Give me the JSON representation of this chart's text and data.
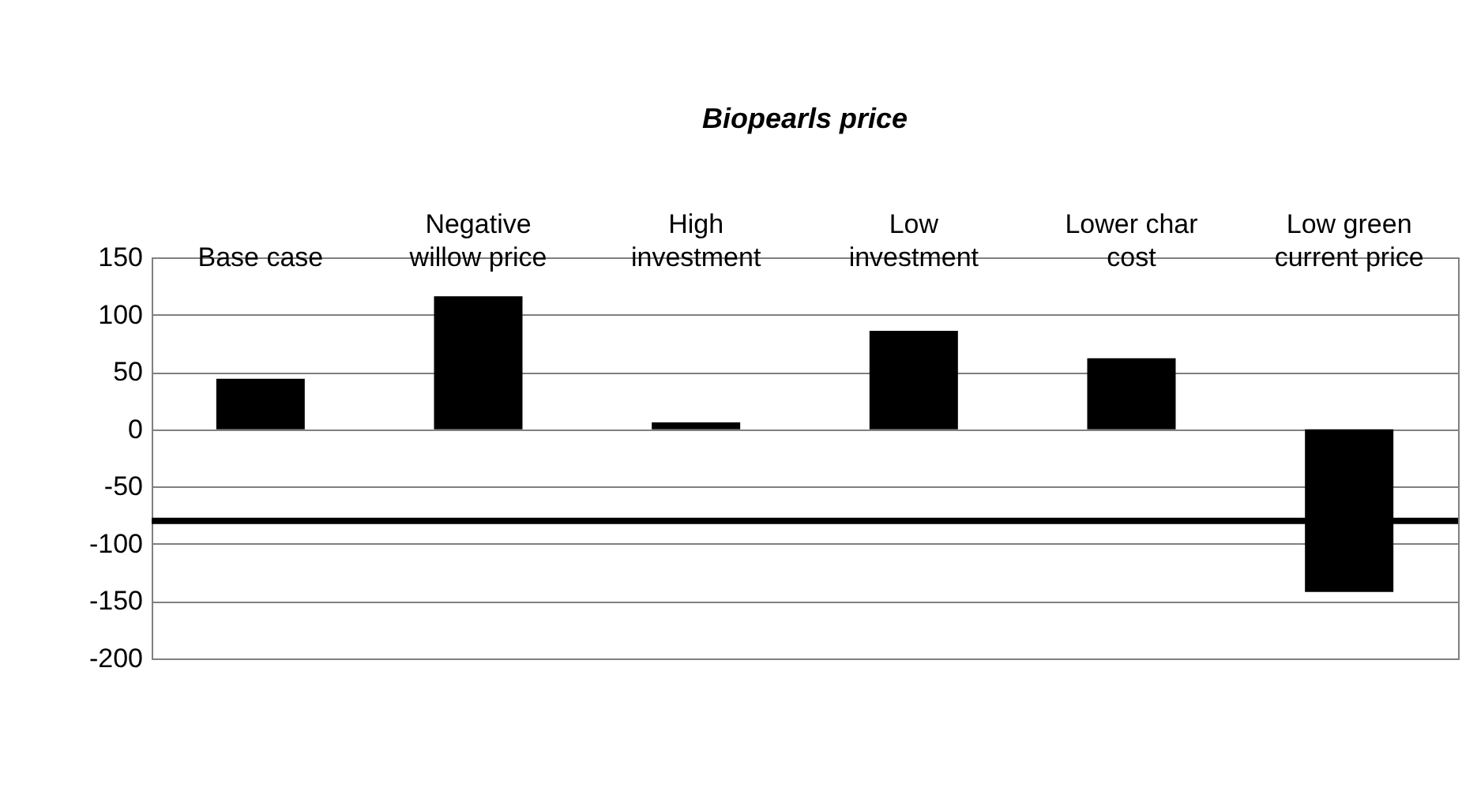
{
  "chart_data": {
    "type": "bar",
    "title": "Biopearls price",
    "categories": [
      "Base case",
      "Negative willow price",
      "High investment",
      "Low investment",
      "Lower char cost",
      "Low green current price"
    ],
    "series": [
      {
        "color": "#000000",
        "values": [
          44,
          116,
          6,
          86,
          62,
          -142
        ]
      }
    ],
    "ylim": [
      -200,
      150
    ],
    "yticks": [
      -200,
      -150,
      -100,
      -50,
      0,
      50,
      100,
      150
    ],
    "grid": "y",
    "ref_lines": [
      {
        "axis": "y",
        "value": -80,
        "color": "#000000"
      }
    ]
  }
}
